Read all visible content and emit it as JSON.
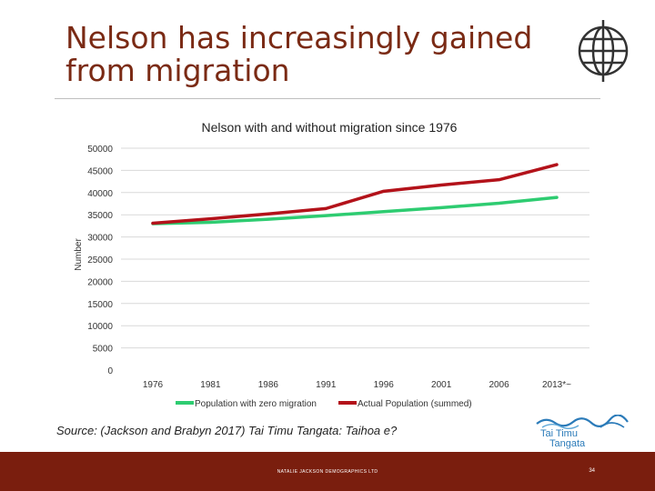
{
  "slide": {
    "title_line1": "Nelson has increasingly gained",
    "title_line2": "from migration",
    "source": "Source: (Jackson and Brabyn 2017) Tai Timu Tangata: Taihoa e?",
    "logo_line1": "Tai Timu",
    "logo_line2": "Tangata",
    "footer_text": "NATALIE JACKSON DEMOGRAPHICS LTD",
    "page_number": "34"
  },
  "colors": {
    "title": "#7a2a14",
    "footer": "#7a1e0e",
    "zero_migration": "#2ecc71",
    "actual_population": "#b3121a",
    "grid": "#d9d9d9",
    "logo": "#2b7bb9"
  },
  "chart_data": {
    "type": "line",
    "title": "Nelson with and without migration since 1976",
    "xlabel": "",
    "ylabel": "Number",
    "categories": [
      "1976",
      "1981",
      "1986",
      "1991",
      "1996",
      "2001",
      "2006",
      "2013*~"
    ],
    "yticks": [
      0,
      5000,
      10000,
      15000,
      20000,
      25000,
      30000,
      35000,
      40000,
      45000,
      50000
    ],
    "ylim": [
      0,
      50000
    ],
    "grid": true,
    "legend": "bottom",
    "series": [
      {
        "name": "Population with zero migration",
        "color": "#2ecc71",
        "values": [
          33000,
          33300,
          34000,
          34800,
          35700,
          36600,
          37600,
          38900
        ]
      },
      {
        "name": "Actual Population (summed)",
        "color": "#b3121a",
        "values": [
          33100,
          34100,
          35200,
          36400,
          40300,
          41700,
          42900,
          46300
        ]
      }
    ]
  }
}
